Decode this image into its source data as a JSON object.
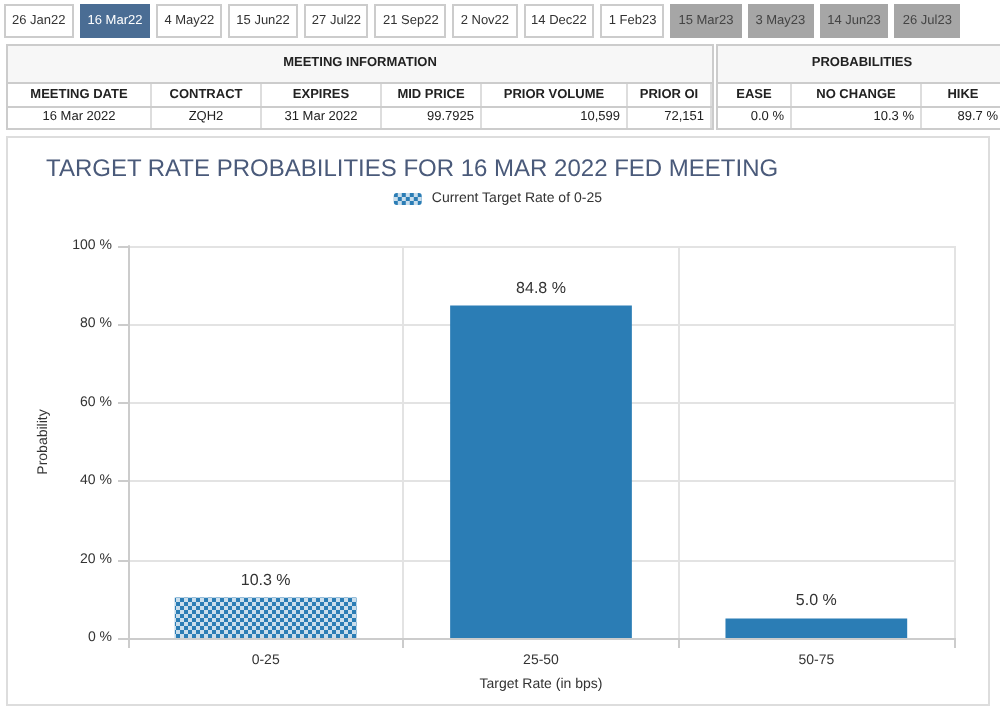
{
  "chart_data": [
    {
      "type": "other",
      "categories": [
        "26 Jan22",
        "16 Mar22",
        "4 May22",
        "15 Jun22",
        "27 Jul22",
        "21 Sep22",
        "2 Nov22",
        "14 Dec22",
        "1 Feb23",
        "15 Mar23",
        "3 May23",
        "14 Jun23",
        "26 Jul23"
      ],
      "colors": [
        "#ffffff",
        "#4a6d94",
        "#ffffff",
        "#ffffff",
        "#ffffff",
        "#ffffff",
        "#ffffff",
        "#ffffff",
        "#ffffff",
        "#a6a6a6",
        "#a6a6a6",
        "#a6a6a6",
        "#a6a6a6"
      ],
      "annotations": [
        "MEETING INFORMATION",
        "PROBABILITIES",
        "MEETING DATE",
        "CONTRACT",
        "EXPIRES",
        "MID PRICE",
        "PRIOR VOLUME",
        "PRIOR OI",
        "EASE",
        "NO CHANGE",
        "HIKE",
        "16 Mar 2022",
        "ZQH2",
        "31 Mar 2022",
        "99.7925",
        "10,599",
        "72,151",
        "0.0 %",
        "10.3 %",
        "89.7 %"
      ]
    },
    {
      "type": "bar",
      "title": "TARGET RATE PROBABILITIES FOR 16 MAR 2022 FED MEETING",
      "xlabel": "Target Rate (in bps)",
      "ylabel": "Probability",
      "categories": [
        "0-25",
        "25-50",
        "50-75"
      ],
      "series": [
        {
          "name": "Current Target Rate of 0-25",
          "color": "#2b7db5",
          "values": [
            10.3,
            null,
            null
          ],
          "value_labels": [
            "10.3 %",
            null,
            null
          ]
        },
        {
          "color": "#2b7db5",
          "values": [
            null,
            84.8,
            5.0
          ],
          "value_labels": [
            null,
            "84.8 %",
            "5.0 %"
          ]
        }
      ],
      "ylim": [
        0,
        100
      ],
      "yticks": [
        {
          "value": 0,
          "label": "0 %"
        },
        {
          "value": 20,
          "label": "20 %"
        },
        {
          "value": 40,
          "label": "40 %"
        },
        {
          "value": 60,
          "label": "60 %"
        },
        {
          "value": 80,
          "label": "80 %"
        },
        {
          "value": 100,
          "label": "100 %"
        }
      ],
      "grid": true,
      "legend": "top"
    }
  ]
}
